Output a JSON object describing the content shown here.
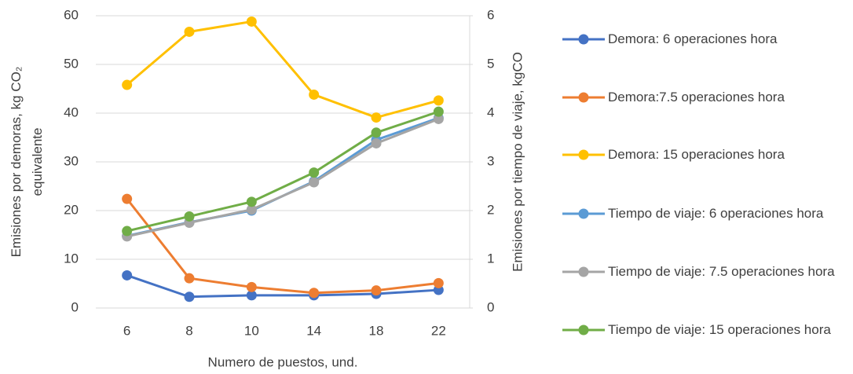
{
  "chart_data": {
    "type": "line",
    "categories": [
      "6",
      "8",
      "10",
      "14",
      "18",
      "22"
    ],
    "x_label": "Numero de puestos, und.",
    "y_label": [
      "Emisiones por demoras, kg CO₂",
      "equivalente"
    ],
    "y2_label": "Emisiones por tiempo de viaje, kgCO",
    "ylim": [
      0,
      60
    ],
    "yticks": [
      0,
      10,
      20,
      30,
      40,
      50,
      60
    ],
    "y2lim": [
      0,
      6
    ],
    "y2ticks": [
      0,
      1,
      2,
      3,
      4,
      5,
      6
    ],
    "grid": true,
    "series": [
      {
        "name": "Demora: 6 operaciones hora",
        "color": "#4472c4",
        "values": [
          6.7,
          2.3,
          2.6,
          2.6,
          2.9,
          3.7
        ]
      },
      {
        "name": "Demora:7.5 operaciones hora",
        "color": "#ed7d31",
        "values": [
          22.4,
          6.1,
          4.3,
          3.1,
          3.6,
          5.1
        ]
      },
      {
        "name": "Demora: 15 operaciones hora",
        "color": "#ffc000",
        "values": [
          45.8,
          56.7,
          58.8,
          43.8,
          39.1,
          42.6
        ]
      },
      {
        "name": "Tiempo de viaje: 6 operaciones hora",
        "color": "#5b9bd5",
        "axis": "y2",
        "values": [
          1.48,
          1.76,
          2.0,
          2.6,
          3.45,
          3.9
        ]
      },
      {
        "name": "Tiempo de viaje: 7.5 operaciones hora",
        "color": "#a5a5a5",
        "axis": "y2",
        "values": [
          1.47,
          1.75,
          2.02,
          2.58,
          3.38,
          3.88
        ]
      },
      {
        "name": "Tiempo de viaje: 15 operaciones hora",
        "color": "#70ad47",
        "axis": "y2",
        "values": [
          1.58,
          1.88,
          2.18,
          2.78,
          3.6,
          4.03
        ]
      }
    ]
  }
}
